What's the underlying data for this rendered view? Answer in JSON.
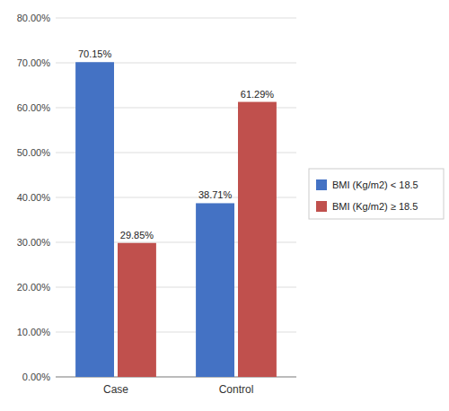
{
  "chart_data": {
    "type": "bar",
    "categories": [
      "Case",
      "Control"
    ],
    "series": [
      {
        "name": "BMI (Kg/m2) < 18.5",
        "color": "#4472C4",
        "values": [
          70.15,
          38.71
        ],
        "value_labels": [
          "70.15%",
          "38.71%"
        ]
      },
      {
        "name": "BMI (Kg/m2) ≥ 18.5",
        "color": "#C0504D",
        "values": [
          29.85,
          61.29
        ],
        "value_labels": [
          "29.85%",
          "61.29%"
        ]
      }
    ],
    "ylim": [
      0,
      80
    ],
    "yticks": [
      {
        "value": 0,
        "label": "0.00%"
      },
      {
        "value": 10,
        "label": "10.00%"
      },
      {
        "value": 20,
        "label": "20.00%"
      },
      {
        "value": 30,
        "label": "30.00%"
      },
      {
        "value": 40,
        "label": "40.00%"
      },
      {
        "value": 50,
        "label": "50.00%"
      },
      {
        "value": 60,
        "label": "60.00%"
      },
      {
        "value": 70,
        "label": "70.00%"
      },
      {
        "value": 80,
        "label": "80.00%"
      }
    ],
    "grid": true,
    "legend": "right",
    "data_labels": true
  }
}
